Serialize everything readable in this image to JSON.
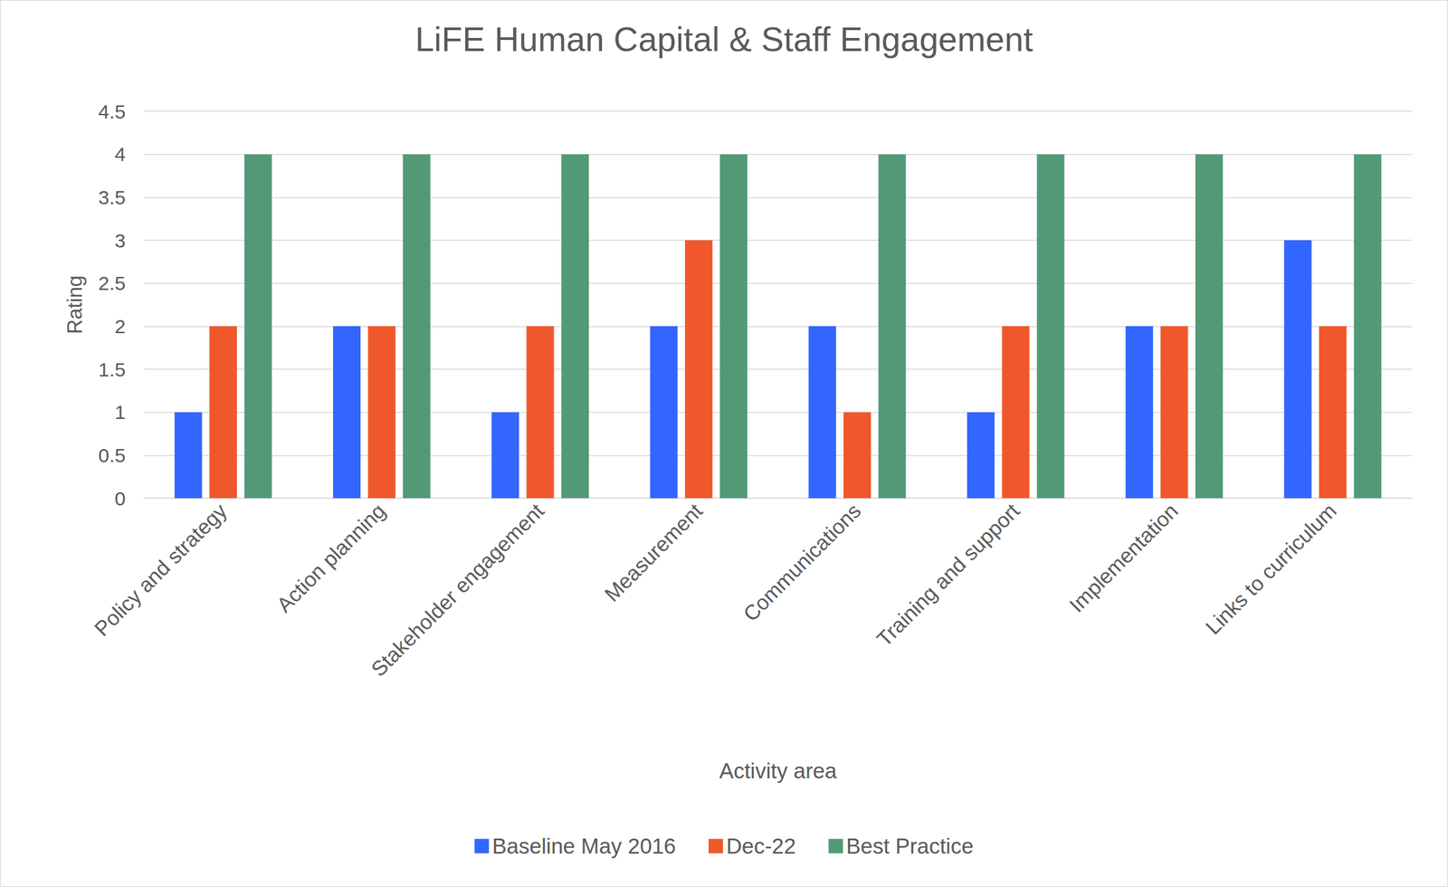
{
  "chart_data": {
    "type": "bar",
    "title": "LiFE Human Capital & Staff Engagement",
    "x_label": "Activity area",
    "y_label": "Rating",
    "categories": [
      "Policy and strategy",
      "Action planning",
      "Stakeholder engagement",
      "Measurement",
      "Communications",
      "Training and support",
      "Implementation",
      "Links to curriculum"
    ],
    "series": [
      {
        "name": "Baseline May 2016",
        "color": "#3366FF",
        "values": [
          1,
          2,
          1,
          2,
          2,
          1,
          2,
          3
        ]
      },
      {
        "name": "Dec-22",
        "color": "#F0582B",
        "values": [
          2,
          2,
          2,
          3,
          1,
          2,
          2,
          2
        ]
      },
      {
        "name": "Best Practice",
        "color": "#529A77",
        "values": [
          4,
          4,
          4,
          4,
          4,
          4,
          4,
          4
        ]
      }
    ],
    "ylim": [
      0,
      4.5
    ],
    "yticks": [
      0,
      0.5,
      1,
      1.5,
      2,
      2.5,
      3,
      3.5,
      4,
      4.5
    ],
    "grid": true,
    "legend": "bottom"
  }
}
